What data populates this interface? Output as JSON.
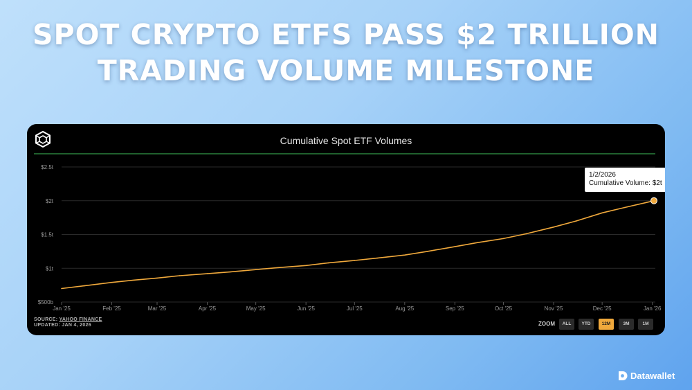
{
  "headline": {
    "line1": "SPOT CRYPTO ETFS PASS $2 TRILLION",
    "line2": "TRADING VOLUME MILESTONE"
  },
  "tooltip": {
    "date": "1/2/2026",
    "text": "Cumulative Volume: $2t"
  },
  "source": {
    "label": "SOURCE:",
    "name": "YAHOO FINANCE",
    "updated": "UPDATED: JAN 4, 2026"
  },
  "zoom": {
    "label": "ZOOM",
    "options": [
      "ALL",
      "YTD",
      "12M",
      "3M",
      "1M"
    ],
    "selected": "12M"
  },
  "brand": {
    "name": "Datawallet"
  },
  "colors": {
    "line": "#f0a93c",
    "accent_rule": "#3fbf5a",
    "card_bg": "#000000"
  },
  "chart_data": {
    "type": "line",
    "title": "Cumulative Spot ETF Volumes",
    "xlabel": "",
    "ylabel": "",
    "y_tick_labels": [
      "$500b",
      "$1t",
      "$1.5t",
      "$2t",
      "$2.5t"
    ],
    "y_ticks": [
      500,
      1000,
      1500,
      2000,
      2500
    ],
    "ylim": [
      500,
      2500
    ],
    "y_unit": "billions USD",
    "x_tick_labels": [
      "Jan '25",
      "Feb '25",
      "Mar '25",
      "Apr '25",
      "May '25",
      "Jun '25",
      "Jul '25",
      "Aug '25",
      "Sep '25",
      "Oct '25",
      "Nov '25",
      "Dec '25",
      "Jan '26"
    ],
    "grid": true,
    "legend": "none",
    "series": [
      {
        "x": [
          "2025-01-01",
          "2025-01-15",
          "2025-02-01",
          "2025-02-15",
          "2025-03-01",
          "2025-03-15",
          "2025-04-01",
          "2025-04-15",
          "2025-05-01",
          "2025-05-15",
          "2025-06-01",
          "2025-06-15",
          "2025-07-01",
          "2025-07-15",
          "2025-08-01",
          "2025-08-15",
          "2025-09-01",
          "2025-09-15",
          "2025-10-01",
          "2025-10-15",
          "2025-11-01",
          "2025-11-15",
          "2025-12-01",
          "2025-12-15",
          "2026-01-02"
        ],
        "values": [
          700,
          740,
          790,
          825,
          855,
          890,
          920,
          945,
          980,
          1010,
          1040,
          1080,
          1115,
          1150,
          1195,
          1250,
          1320,
          1380,
          1440,
          1510,
          1610,
          1700,
          1820,
          1900,
          2000
        ]
      }
    ]
  }
}
